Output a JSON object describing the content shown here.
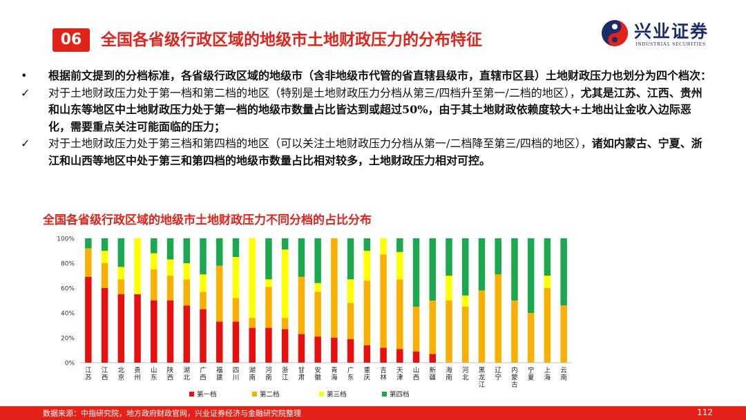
{
  "header": {
    "section_number": "06",
    "title": "全国各省级行政区域的地级市土地财政压力的分布特征",
    "logo_cn": "兴业证券",
    "logo_en": "INDUSTRIAL SECURITIES"
  },
  "body": {
    "bullet_mark": "•",
    "check_mark": "✓",
    "p1": "根据前文提到的分档标准，各省级行政区域的地级市（含非地级市代管的省直辖县级市，直辖市区县）土地财政压力也划分为四个档次：",
    "p2_normal": "对于土地财政压力处于第一档和第二档的地区（特别是土地财政压力分档从第三/四档升至第一/二档的地区），",
    "p2_bold": "尤其是江苏、江西、贵州和山东等地区中土地财政压力处于第一档的地级市数量占比皆达到或超过50%，由于其土地财政依赖度较大+土地出让金收入边际恶化，需要重点关注可能面临的压力；",
    "p3_normal": "对于土地财政压力处于第三档和第四档的地区（可以关注土地财政压力分档从第一/二档降至第三/四档的地区），",
    "p3_bold": "诸如内蒙古、宁夏、浙江和山西等地区中处于第三和第四档的地级市数量占比相对较多，土地财政压力相对可控。"
  },
  "chart_title": "全国各省级行政区域的地级市土地财政压力不同分档的占比分布",
  "chart_data": {
    "type": "bar",
    "stacked": true,
    "y_unit": "%",
    "ylim": [
      0,
      100
    ],
    "y_ticks": [
      "0%",
      "20%",
      "40%",
      "60%",
      "80%",
      "100%"
    ],
    "categories": [
      "江苏",
      "江西",
      "北京",
      "贵州",
      "山东",
      "陕西",
      "湖北",
      "广西",
      "福建",
      "四川",
      "湖南",
      "河南",
      "浙江",
      "甘肃",
      "安徽",
      "青海",
      "广东",
      "重庆",
      "吉林",
      "天津",
      "山西",
      "新疆",
      "海南",
      "河北",
      "黑龙江",
      "辽宁",
      "内蒙古",
      "宁夏",
      "上海",
      "云南"
    ],
    "series": [
      {
        "name": "第一档",
        "color": "#e8100e",
        "values": [
          69,
          60,
          55,
          55,
          50,
          50,
          46,
          43,
          33,
          33,
          28,
          28,
          27,
          23,
          21,
          20,
          19,
          14,
          12,
          11,
          9,
          7,
          0,
          0,
          0,
          0,
          0,
          0,
          0,
          0
        ]
      },
      {
        "name": "第二档",
        "color": "#f9b000",
        "values": [
          23,
          20,
          12,
          0,
          25,
          20,
          21,
          14,
          45,
          19,
          8,
          33,
          9,
          46,
          36,
          80,
          29,
          52,
          75,
          56,
          36,
          43,
          50,
          45,
          58,
          71,
          50,
          40,
          60,
          46
        ]
      },
      {
        "name": "第三档",
        "color": "#ffff00",
        "values": [
          0,
          10,
          10,
          45,
          13,
          13,
          13,
          14,
          0,
          33,
          64,
          6,
          55,
          0,
          7,
          0,
          19,
          24,
          13,
          22,
          0,
          0,
          20,
          9,
          0,
          0,
          0,
          0,
          10,
          0
        ]
      },
      {
        "name": "第四档",
        "color": "#1ba84f",
        "values": [
          8,
          10,
          23,
          0,
          12,
          17,
          20,
          29,
          22,
          15,
          0,
          33,
          9,
          31,
          36,
          0,
          33,
          10,
          0,
          11,
          55,
          50,
          30,
          46,
          42,
          29,
          50,
          60,
          30,
          54
        ]
      }
    ],
    "legend_position": "bottom",
    "grid": false
  },
  "footer": {
    "source": "数据来源：中指研究院，地方政府财政官网，兴业证券经济与金融研究院整理",
    "page_number": "112"
  }
}
